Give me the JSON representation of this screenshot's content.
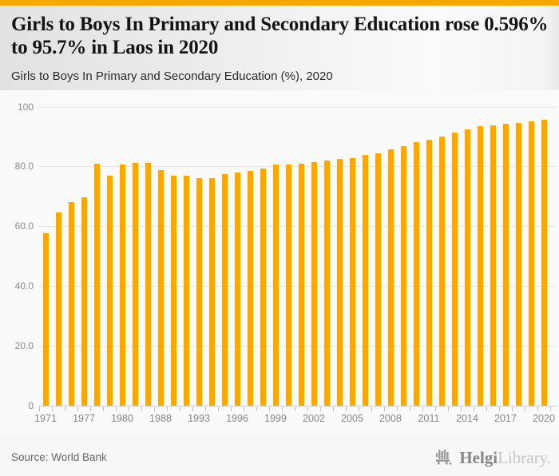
{
  "header": {
    "title": "Girls to Boys In Primary and Secondary Education rose 0.596% to 95.7% in Laos in 2020",
    "subtitle": "Girls to Boys In Primary and Secondary Education (%), 2020"
  },
  "footer": {
    "source": "Source: World Bank",
    "logo_part1": "Helgi",
    "logo_part2": "Library."
  },
  "colors": {
    "brand_amber": "#f8a800",
    "topbar_amber": "#f5a800",
    "gridline": "#e6e6e6",
    "axis": "#ccd4e2",
    "tick": "#b9c4d6",
    "tick_label": "#858585"
  },
  "chart_data": {
    "type": "bar",
    "title": "Girls to Boys In Primary and Secondary Education (%), 2020",
    "xlabel": "",
    "ylabel": "",
    "ylim": [
      0,
      100
    ],
    "grid": true,
    "legend": "none",
    "bar_color": "#f8a800",
    "categories": [
      "1971",
      "1975",
      "1976",
      "1977",
      "1978",
      "1979",
      "1980",
      "1981",
      "1984",
      "1988",
      "1989",
      "1992",
      "1993",
      "1994",
      "1995",
      "1996",
      "1997",
      "1998",
      "1999",
      "2000",
      "2001",
      "2002",
      "2003",
      "2004",
      "2005",
      "2006",
      "2007",
      "2008",
      "2009",
      "2010",
      "2011",
      "2012",
      "2013",
      "2014",
      "2015",
      "2016",
      "2017",
      "2018",
      "2019",
      "2020"
    ],
    "values": [
      57.7,
      64.6,
      68.0,
      69.7,
      80.9,
      76.9,
      80.7,
      81.2,
      81.3,
      78.7,
      76.9,
      76.9,
      76.0,
      76.0,
      77.5,
      78.0,
      78.5,
      79.4,
      80.6,
      80.6,
      81.0,
      81.5,
      82.0,
      82.4,
      82.7,
      83.9,
      84.3,
      85.6,
      86.7,
      88.0,
      89.0,
      90.1,
      91.2,
      92.5,
      93.4,
      93.6,
      94.3,
      94.6,
      95.1,
      95.7
    ],
    "x_tick_labels_visible": [
      "1971",
      "1977",
      "1980",
      "1988",
      "1993",
      "1996",
      "1999",
      "2002",
      "2005",
      "2008",
      "2011",
      "2014",
      "2017",
      "2020"
    ],
    "x_label_every_n_bars": 3,
    "yticks": [
      0,
      20,
      40,
      60,
      80,
      100
    ],
    "ytick_labels": [
      "0",
      "20.0",
      "40.0",
      "60.0",
      "80.0",
      "100"
    ]
  }
}
